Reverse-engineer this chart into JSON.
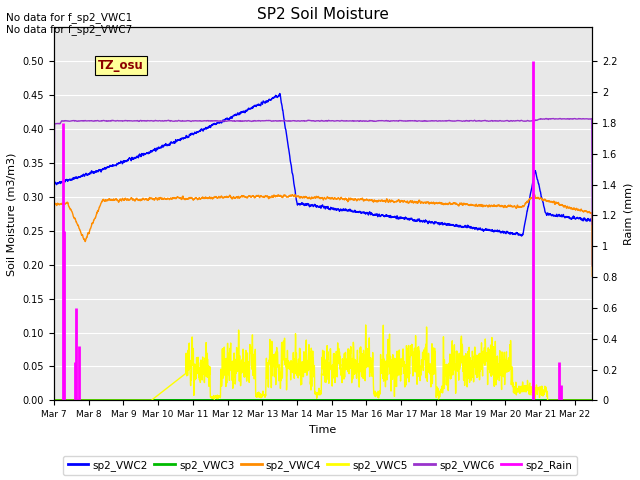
{
  "title": "SP2 Soil Moisture",
  "ylabel_left": "Soil Moisture (m3/m3)",
  "ylabel_right": "Raim (mm)",
  "xlabel": "Time",
  "no_data_text": [
    "No data for f_sp2_VWC1",
    "No data for f_sp2_VWC7"
  ],
  "tz_label": "TZ_osu",
  "ylim_left": [
    0.0,
    0.55
  ],
  "ylim_right": [
    0.0,
    2.42
  ],
  "yticks_left": [
    0.0,
    0.05,
    0.1,
    0.15,
    0.2,
    0.25,
    0.3,
    0.35,
    0.4,
    0.45,
    0.5
  ],
  "yticks_right": [
    0.0,
    0.2,
    0.4,
    0.6,
    0.8,
    1.0,
    1.2,
    1.4,
    1.6,
    1.8,
    2.0,
    2.2
  ],
  "x_tick_labels": [
    "Mar 7",
    "Mar 8",
    "Mar 9",
    "Mar 10",
    "Mar 11",
    "Mar 12",
    "Mar 13",
    "Mar 14",
    "Mar 15",
    "Mar 16",
    "Mar 17",
    "Mar 18",
    "Mar 19",
    "Mar 20",
    "Mar 21",
    "Mar 22"
  ],
  "colors": {
    "sp2_VWC2": "#0000FF",
    "sp2_VWC3": "#00BB00",
    "sp2_VWC4": "#FF8C00",
    "sp2_VWC5": "#FFFF00",
    "sp2_VWC6": "#9933CC",
    "sp2_Rain": "#FF00FF"
  },
  "background_color": "#E8E8E8",
  "grid_color": "#FFFFFF"
}
